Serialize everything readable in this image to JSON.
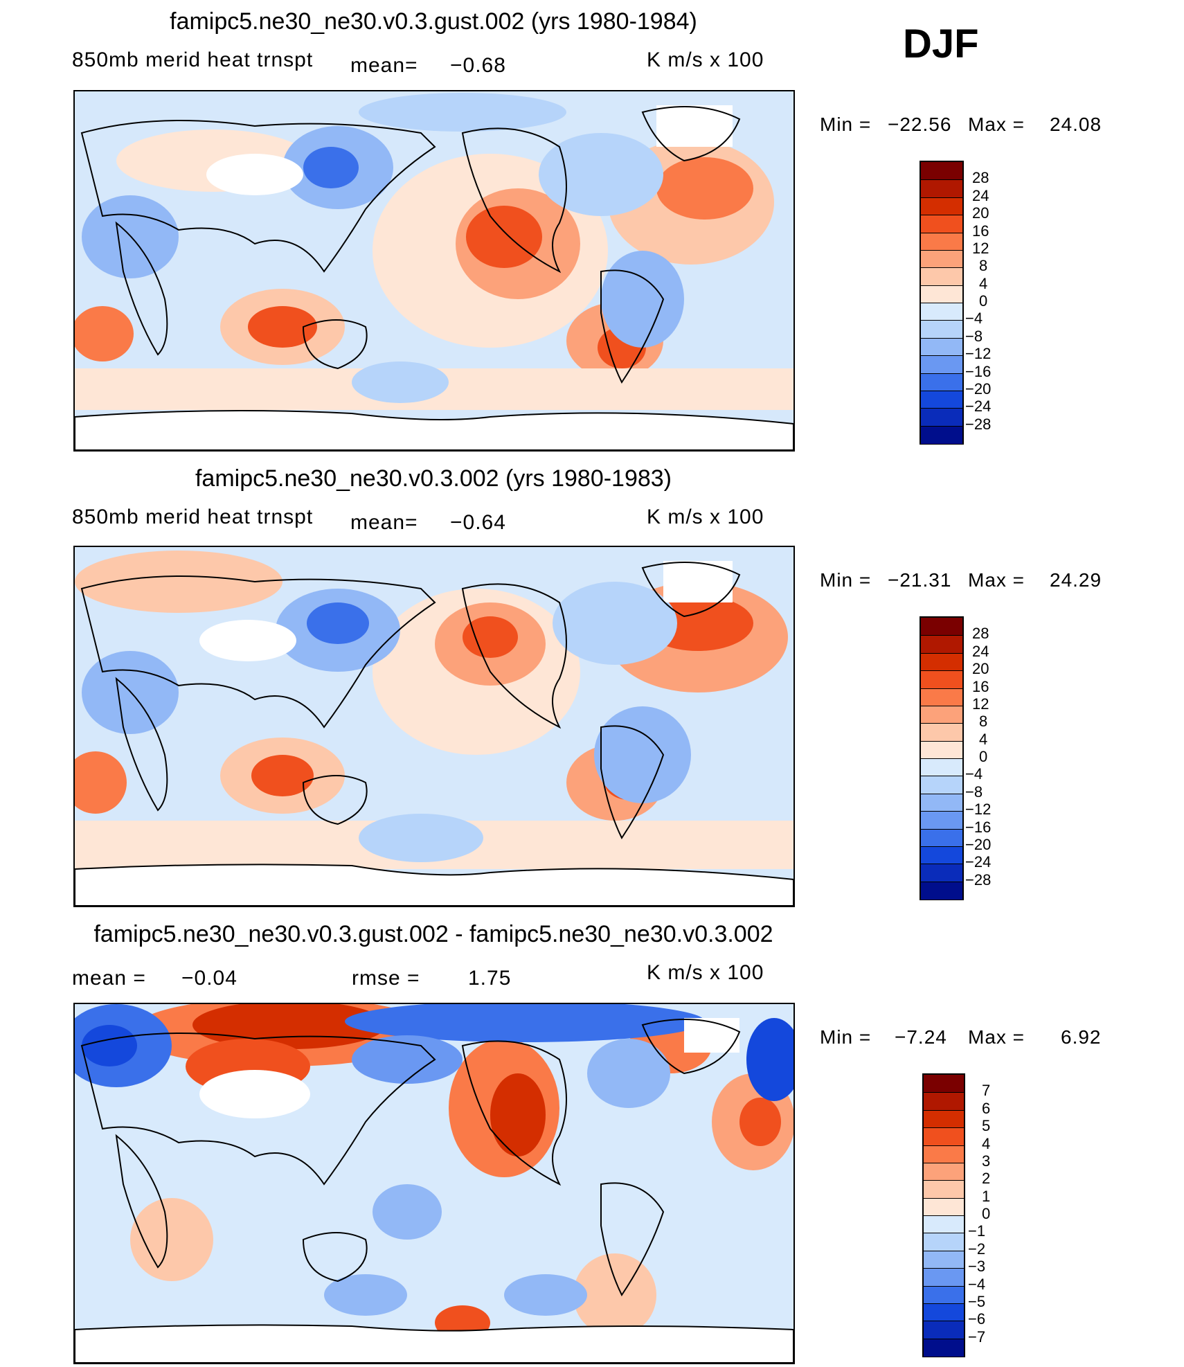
{
  "season": "DJF",
  "panels": [
    {
      "title": "famipc5.ne30_ne30.v0.3.gust.002 (yrs 1980-1984)",
      "left_label": "850mb merid heat trnspt",
      "mean_label": "mean=",
      "mean_value": "−0.68",
      "units": "K m/s x 100",
      "min_label": "Min =",
      "min_value": "−22.56",
      "max_label": "Max =",
      "max_value": "24.08",
      "colorbar_labels": [
        "28",
        "24",
        "20",
        "16",
        "12",
        "8",
        "4",
        "0",
        "−4",
        "−8",
        "−12",
        "−16",
        "−20",
        "−24",
        "−28"
      ]
    },
    {
      "title": "famipc5.ne30_ne30.v0.3.002 (yrs 1980-1983)",
      "left_label": "850mb merid heat trnspt",
      "mean_label": "mean=",
      "mean_value": "−0.64",
      "units": "K m/s x 100",
      "min_label": "Min =",
      "min_value": "−21.31",
      "max_label": "Max =",
      "max_value": "24.29",
      "colorbar_labels": [
        "28",
        "24",
        "20",
        "16",
        "12",
        "8",
        "4",
        "0",
        "−4",
        "−8",
        "−12",
        "−16",
        "−20",
        "−24",
        "−28"
      ]
    },
    {
      "title": "famipc5.ne30_ne30.v0.3.gust.002 - famipc5.ne30_ne30.v0.3.002",
      "left_label": "mean =",
      "mean_value": "−0.04",
      "rmse_label": "rmse =",
      "rmse_value": "1.75",
      "units": "K m/s x 100",
      "min_label": "Min =",
      "min_value": "−7.24",
      "max_label": "Max =",
      "max_value": "6.92",
      "colorbar_labels": [
        "7",
        "6",
        "5",
        "4",
        "3",
        "2",
        "1",
        "0",
        "−1",
        "−2",
        "−3",
        "−4",
        "−5",
        "−6",
        "−7"
      ]
    }
  ],
  "colors": {
    "reds": [
      "#7a0000",
      "#b01800",
      "#d42e00",
      "#f0501e",
      "#fa7a48",
      "#fca27a",
      "#fdc8aa",
      "#fee6d6"
    ],
    "blues": [
      "#d8eafc",
      "#b6d4fa",
      "#92b8f6",
      "#6a98f2",
      "#3a70ea",
      "#1448dc",
      "#0a2cba",
      "#000e8c"
    ]
  }
}
